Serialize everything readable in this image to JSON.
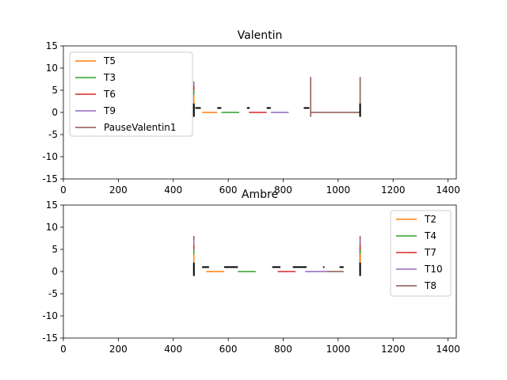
{
  "chart_data": [
    {
      "type": "line",
      "title": "Valentin",
      "xlim": [
        0,
        1430
      ],
      "ylim": [
        -15,
        15
      ],
      "xticks": [
        0,
        200,
        400,
        600,
        800,
        1000,
        1200,
        1400
      ],
      "yticks": [
        -15,
        -10,
        -5,
        0,
        5,
        10,
        15
      ],
      "legend_position": "upper left",
      "colors": {
        "T5": "#ff7f0e",
        "T3": "#2ca02c",
        "T6": "#d62728",
        "T9": "#9467bd",
        "PauseValentin1": "#8c564b",
        "marker": "#000000"
      },
      "series": [
        {
          "name": "T5",
          "segments": [
            [
              [
                505,
                0
              ],
              [
                560,
                0
              ]
            ]
          ],
          "vbars": [
            [
              475,
              0,
              4
            ]
          ]
        },
        {
          "name": "T3",
          "segments": [
            [
              [
                575,
                0
              ],
              [
                640,
                0
              ]
            ]
          ],
          "vbars": [
            [
              475,
              0,
              5
            ]
          ]
        },
        {
          "name": "T6",
          "segments": [
            [
              [
                675,
                0
              ],
              [
                740,
                0
              ]
            ]
          ],
          "vbars": [
            [
              475,
              0,
              6
            ]
          ]
        },
        {
          "name": "T9",
          "segments": [
            [
              [
                755,
                0
              ],
              [
                820,
                0
              ]
            ]
          ],
          "vbars": [
            [
              475,
              0,
              7
            ]
          ]
        },
        {
          "name": "PauseValentin1",
          "segments": [
            [
              [
                900,
                0
              ],
              [
                1080,
                0
              ]
            ]
          ],
          "vbars": [
            [
              900,
              -1,
              8
            ],
            [
              1080,
              0,
              8
            ]
          ]
        }
      ],
      "markers": {
        "dashes": [
          [
            [
              480,
              1
            ],
            [
              500,
              1
            ]
          ],
          [
            [
              560,
              1
            ],
            [
              575,
              1
            ]
          ],
          [
            [
              668,
              1
            ],
            [
              678,
              1
            ]
          ],
          [
            [
              740,
              1
            ],
            [
              755,
              1
            ]
          ],
          [
            [
              875,
              1
            ],
            [
              895,
              1
            ]
          ]
        ],
        "vlines": [
          [
            475,
            -1,
            2
          ],
          [
            1080,
            -1,
            2
          ]
        ]
      }
    },
    {
      "type": "line",
      "title": "Ambre",
      "xlim": [
        0,
        1430
      ],
      "ylim": [
        -15,
        15
      ],
      "xticks": [
        0,
        200,
        400,
        600,
        800,
        1000,
        1200,
        1400
      ],
      "yticks": [
        -15,
        -10,
        -5,
        0,
        5,
        10,
        15
      ],
      "legend_position": "upper right",
      "colors": {
        "T2": "#ff7f0e",
        "T4": "#2ca02c",
        "T7": "#d62728",
        "T10": "#9467bd",
        "T8": "#8c564b",
        "marker": "#000000"
      },
      "series": [
        {
          "name": "T2",
          "segments": [
            [
              [
                520,
                0
              ],
              [
                585,
                0
              ]
            ]
          ],
          "vbars": [
            [
              475,
              0,
              4
            ],
            [
              1080,
              0,
              4
            ]
          ]
        },
        {
          "name": "T4",
          "segments": [
            [
              [
                635,
                0
              ],
              [
                700,
                0
              ]
            ]
          ],
          "vbars": [
            [
              475,
              0,
              5
            ],
            [
              1080,
              0,
              5
            ]
          ]
        },
        {
          "name": "T7",
          "segments": [
            [
              [
                780,
                0
              ],
              [
                845,
                0
              ]
            ]
          ],
          "vbars": [
            [
              475,
              0,
              6
            ],
            [
              1080,
              0,
              6
            ]
          ]
        },
        {
          "name": "T10",
          "segments": [
            [
              [
                880,
                0
              ],
              [
                960,
                0
              ]
            ]
          ],
          "vbars": [
            [
              475,
              0,
              7
            ],
            [
              1080,
              0,
              7
            ]
          ]
        },
        {
          "name": "T8",
          "segments": [
            [
              [
                960,
                0
              ],
              [
                1020,
                0
              ]
            ]
          ],
          "vbars": [
            [
              475,
              0,
              8
            ],
            [
              1080,
              0,
              8
            ]
          ]
        }
      ],
      "markers": {
        "dashes": [
          [
            [
              505,
              1
            ],
            [
              530,
              1
            ]
          ],
          [
            [
              585,
              1
            ],
            [
              635,
              1
            ]
          ],
          [
            [
              760,
              1
            ],
            [
              790,
              1
            ]
          ],
          [
            [
              835,
              1
            ],
            [
              885,
              1
            ]
          ],
          [
            [
              945,
              1
            ],
            [
              950,
              1
            ]
          ],
          [
            [
              1005,
              1
            ],
            [
              1020,
              1
            ]
          ]
        ],
        "vlines": [
          [
            475,
            -1,
            2
          ],
          [
            1080,
            -1,
            2
          ]
        ]
      }
    }
  ]
}
